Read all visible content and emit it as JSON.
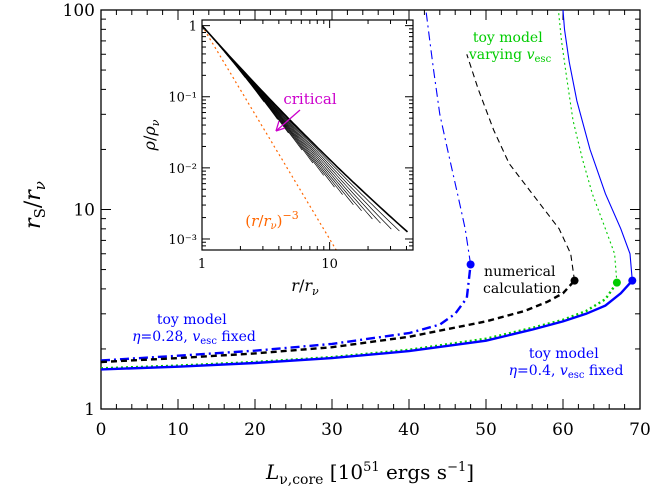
{
  "chart_data": [
    {
      "type": "line",
      "panel": "main",
      "xlabel": "L_ν,core [10⁵¹ ergs s⁻¹]",
      "ylabel": "r_S / r_ν",
      "xlim": [
        0,
        70
      ],
      "ylim": [
        1,
        100
      ],
      "yscale": "log",
      "x_ticks": [
        0,
        10,
        20,
        30,
        40,
        50,
        60,
        70
      ],
      "x_tick_labels": [
        "0",
        "10",
        "20",
        "30",
        "40",
        "50",
        "60",
        "70"
      ],
      "y_ticks": [
        1,
        10,
        100
      ],
      "y_tick_labels": [
        "1",
        "10",
        "100"
      ],
      "series": [
        {
          "name": "toy model η=0.28, v_esc fixed",
          "color": "#0000ff",
          "style": "dash-dot",
          "lower": [
            [
              0,
              1.75
            ],
            [
              10,
              1.85
            ],
            [
              20,
              1.96
            ],
            [
              30,
              2.12
            ],
            [
              40,
              2.4
            ],
            [
              44,
              2.65
            ],
            [
              46,
              3.0
            ],
            [
              47.5,
              3.6
            ],
            [
              48,
              5.3
            ]
          ],
          "upper": [
            [
              48,
              5.3
            ],
            [
              47.3,
              8
            ],
            [
              46.3,
              12
            ],
            [
              45,
              20
            ],
            [
              44,
              30
            ],
            [
              43.2,
              50
            ],
            [
              42.7,
              70
            ],
            [
              42.2,
              100
            ]
          ],
          "critical_point": [
            48,
            5.3
          ]
        },
        {
          "name": "numerical calculation",
          "color": "#000000",
          "style": "dashed",
          "lower": [
            [
              0,
              1.72
            ],
            [
              10,
              1.8
            ],
            [
              20,
              1.9
            ],
            [
              30,
              2.04
            ],
            [
              40,
              2.3
            ],
            [
              50,
              2.75
            ],
            [
              55,
              3.1
            ],
            [
              58,
              3.45
            ],
            [
              60,
              3.8
            ],
            [
              61.5,
              4.4
            ]
          ],
          "upper": [
            [
              61.5,
              4.4
            ],
            [
              61,
              6
            ],
            [
              59.5,
              8
            ],
            [
              56,
              12
            ],
            [
              53,
              17
            ],
            [
              51,
              25
            ],
            [
              49,
              40
            ],
            [
              47.5,
              60
            ]
          ],
          "critical_point": [
            61.5,
            4.4
          ]
        },
        {
          "name": "toy model varying v_esc",
          "color": "#00cc00",
          "style": "dotted",
          "lower": [
            [
              0,
              1.6
            ],
            [
              10,
              1.65
            ],
            [
              20,
              1.72
            ],
            [
              30,
              1.82
            ],
            [
              40,
              1.98
            ],
            [
              50,
              2.25
            ],
            [
              56,
              2.55
            ],
            [
              60,
              2.8
            ],
            [
              63,
              3.1
            ],
            [
              65.5,
              3.55
            ],
            [
              67,
              4.3
            ]
          ],
          "upper": [
            [
              67,
              4.3
            ],
            [
              66.7,
              6
            ],
            [
              65.5,
              8
            ],
            [
              63.8,
              12
            ],
            [
              62.5,
              18
            ],
            [
              61.3,
              28
            ],
            [
              60.5,
              45
            ],
            [
              59.8,
              70
            ],
            [
              59.4,
              100
            ]
          ],
          "critical_point": [
            67,
            4.3
          ]
        },
        {
          "name": "toy model η=0.4, v_esc fixed",
          "color": "#0000ff",
          "style": "solid",
          "lower": [
            [
              0,
              1.58
            ],
            [
              10,
              1.63
            ],
            [
              20,
              1.7
            ],
            [
              30,
              1.8
            ],
            [
              40,
              1.95
            ],
            [
              50,
              2.2
            ],
            [
              56,
              2.5
            ],
            [
              60,
              2.75
            ],
            [
              63,
              3.0
            ],
            [
              65.5,
              3.3
            ],
            [
              67.5,
              3.8
            ],
            [
              69,
              4.4
            ]
          ],
          "upper": [
            [
              69,
              4.4
            ],
            [
              68.7,
              6
            ],
            [
              67.5,
              8
            ],
            [
              65.5,
              12
            ],
            [
              63.5,
              20
            ],
            [
              61.8,
              35
            ],
            [
              60.8,
              55
            ],
            [
              60.2,
              80
            ],
            [
              60,
              100
            ]
          ],
          "critical_point": [
            69,
            4.4
          ]
        }
      ],
      "annotations": [
        {
          "id": "numerical",
          "lines": [
            "numerical",
            "calculation"
          ],
          "color": "#000000"
        },
        {
          "id": "toy_varying",
          "lines": [
            "toy model",
            "varying v_esc"
          ],
          "color": "#00cc00"
        },
        {
          "id": "toy_028",
          "lines": [
            "toy model",
            "η=0.28, v_esc fixed"
          ],
          "color": "#0000ff"
        },
        {
          "id": "toy_04",
          "lines": [
            "toy model",
            "η=0.4, v_esc fixed"
          ],
          "color": "#0000ff"
        }
      ]
    },
    {
      "type": "line",
      "panel": "inset",
      "xlabel": "r/r_ν",
      "ylabel": "ρ/ρ_ν",
      "xscale": "log",
      "yscale": "log",
      "xlim": [
        1,
        45
      ],
      "ylim": [
        0.0007,
        1.2
      ],
      "x_ticks": [
        1,
        10
      ],
      "x_tick_labels": [
        "1",
        "10"
      ],
      "y_ticks": [
        0.001,
        0.01,
        0.1,
        1
      ],
      "y_tick_labels": [
        "10⁻³",
        "10⁻²",
        "10⁻¹",
        "1"
      ],
      "curve_family": {
        "color": "#000000",
        "count": 16,
        "critical_series_end": [
          42,
          0.0012
        ],
        "steepest_end": [
          2.2,
          0.055
        ]
      },
      "critical_label": "critical",
      "critical_color": "#cc00cc",
      "power_law": {
        "label": "(r/r_ν)⁻³",
        "exponent": -3,
        "color": "#ff6600",
        "style": "dotted"
      }
    }
  ]
}
